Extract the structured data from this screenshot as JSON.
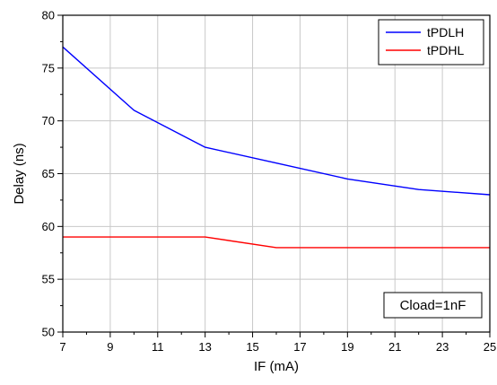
{
  "chart_data": {
    "type": "line",
    "xlabel": "IF (mA)",
    "ylabel": "Delay (ns)",
    "xlim": [
      7,
      25
    ],
    "ylim": [
      50,
      80
    ],
    "xticks": [
      7,
      9,
      11,
      13,
      15,
      17,
      19,
      21,
      23,
      25
    ],
    "yticks": [
      50,
      55,
      60,
      65,
      70,
      75,
      80
    ],
    "grid": true,
    "legend_position": "top-right",
    "annotation": "Cload=1nF",
    "series": [
      {
        "name": "tPDLH",
        "color": "#0000ff",
        "x": [
          7,
          10,
          13,
          16,
          19,
          22,
          25
        ],
        "y": [
          77,
          71,
          67.5,
          66,
          64.5,
          63.5,
          63
        ]
      },
      {
        "name": "tPDHL",
        "color": "#ff0000",
        "x": [
          7,
          10,
          13,
          16,
          19,
          22,
          25
        ],
        "y": [
          59,
          59,
          59,
          58,
          58,
          58,
          58
        ]
      }
    ]
  }
}
